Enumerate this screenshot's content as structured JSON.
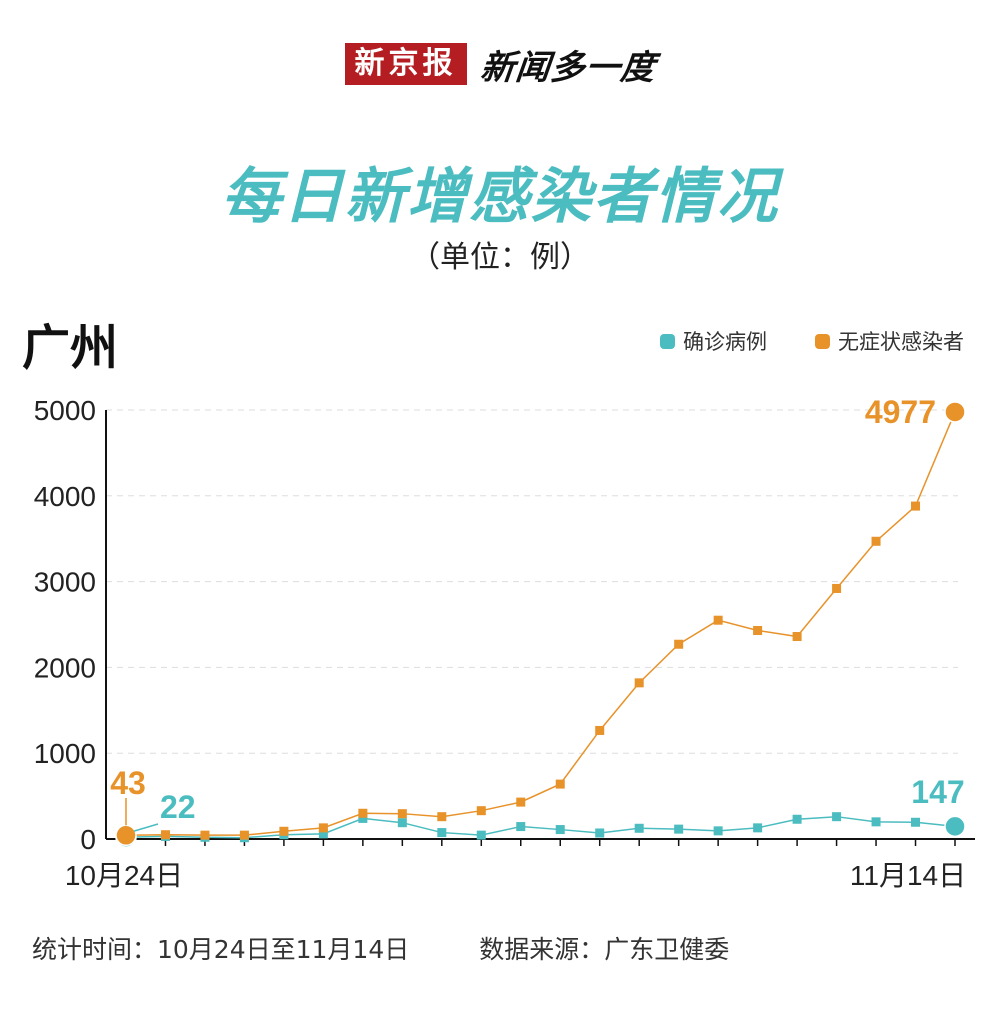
{
  "header": {
    "brand_logo": "新京报",
    "brand_column": "新闻多一度"
  },
  "title": "每日新增感染者情况",
  "unit": "（单位：例）",
  "region": "广州",
  "legend": {
    "confirmed": "确诊病例",
    "asymptomatic": "无症状感染者"
  },
  "colors": {
    "confirmed": "#4bbcc0",
    "asymptomatic": "#e8922a"
  },
  "chart_data": {
    "type": "line",
    "x_labels": {
      "start": "10月24日",
      "end": "11月14日"
    },
    "ylim": [
      0,
      5000
    ],
    "yticks": [
      0,
      1000,
      2000,
      3000,
      4000,
      5000
    ],
    "grid": true,
    "legend_position": "top-right",
    "x": [
      "10-24",
      "10-25",
      "10-26",
      "10-27",
      "10-28",
      "10-29",
      "10-30",
      "10-31",
      "11-01",
      "11-02",
      "11-03",
      "11-04",
      "11-05",
      "11-06",
      "11-07",
      "11-08",
      "11-09",
      "11-10",
      "11-11",
      "11-12",
      "11-13",
      "11-14"
    ],
    "series": [
      {
        "key": "confirmed",
        "name": "确诊病例",
        "values": [
          22,
          30,
          20,
          15,
          50,
          60,
          240,
          190,
          75,
          45,
          145,
          110,
          70,
          125,
          115,
          95,
          130,
          230,
          260,
          200,
          195,
          147
        ]
      },
      {
        "key": "asymptomatic",
        "name": "无症状感染者",
        "values": [
          43,
          50,
          45,
          45,
          90,
          130,
          300,
          295,
          260,
          330,
          430,
          640,
          1265,
          1820,
          2270,
          2550,
          2430,
          2360,
          2920,
          3470,
          3880,
          4977
        ]
      }
    ],
    "annotations": {
      "asymptomatic_first": "43",
      "confirmed_first": "22",
      "asymptomatic_last": "4977",
      "confirmed_last": "147"
    }
  },
  "footer": {
    "stat_period": "统计时间：10月24日至11月14日",
    "source": "数据来源：广东卫健委"
  }
}
